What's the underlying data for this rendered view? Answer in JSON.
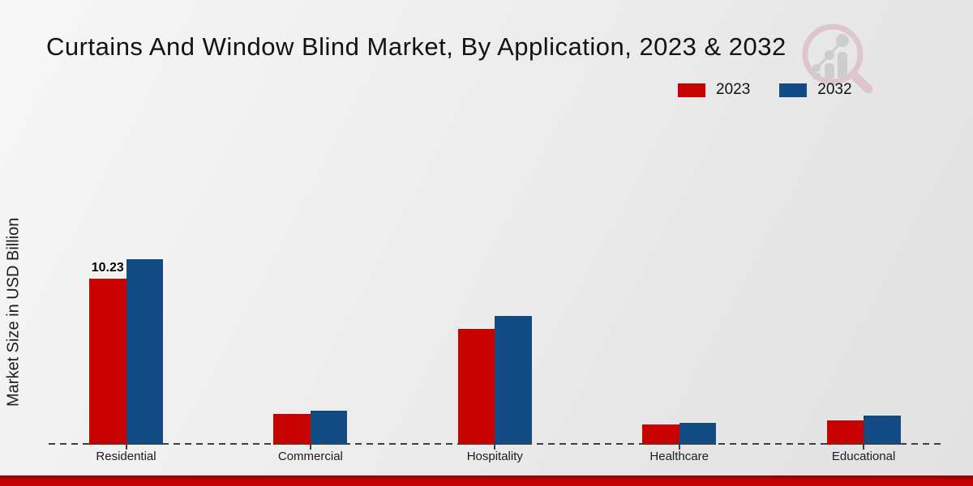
{
  "page": {
    "title": "Curtains And Window Blind Market, By Application, 2023 & 2032"
  },
  "chart_data": {
    "type": "bar",
    "title": "Curtains And Window Blind Market, By Application, 2023 & 2032",
    "categories": [
      "Residential",
      "Commercial",
      "Hospitality",
      "Healthcare",
      "Educational"
    ],
    "series": [
      {
        "name": "2023",
        "color": "#c80101",
        "values": [
          10.23,
          1.8,
          7.1,
          1.15,
          1.4
        ]
      },
      {
        "name": "2032",
        "color": "#134c85",
        "values": [
          11.44,
          2.0,
          7.9,
          1.26,
          1.7
        ]
      }
    ],
    "xlabel": "",
    "ylabel": "Market Size in USD Billion",
    "ylim": [
      0,
      12
    ],
    "grid": false,
    "y_axis_ticks_visible": false,
    "legend_position": "top-right",
    "baseline_style": "dashed",
    "annotations": [
      {
        "series": "2023",
        "category": "Residential",
        "text": "10.23"
      }
    ]
  },
  "colors": {
    "series_2023": "#c80101",
    "series_2032": "#134c85",
    "footer_strip": "#c60404",
    "background": "#ebebeb",
    "axis": "#3f3f3f"
  },
  "watermark": {
    "name": "market-research-magnifier-logo"
  }
}
